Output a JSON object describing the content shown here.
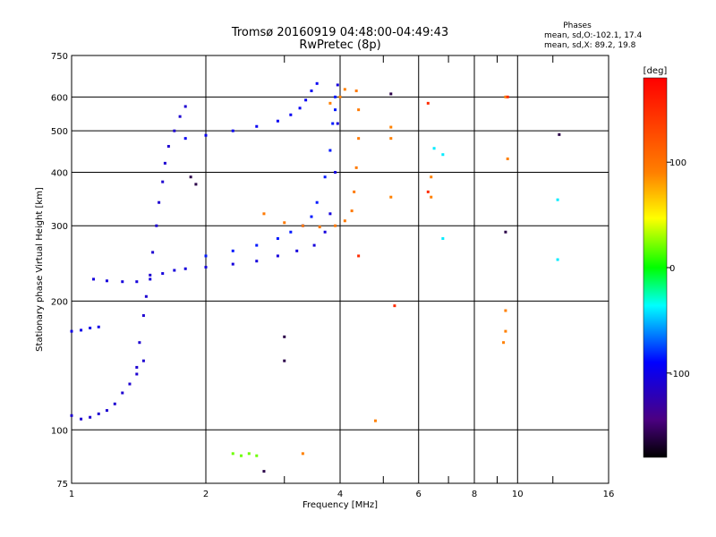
{
  "chart_data": {
    "type": "scatter",
    "title": "Tromsø 20160919 04:48:00-04:49:43",
    "subtitle": "RwPretec (8p)",
    "xlabel": "Frequency [MHz]",
    "ylabel": "Stationary phase Virtual Height [km]",
    "x_scale": "log",
    "y_scale": "log",
    "xlim": [
      1,
      16
    ],
    "ylim": [
      75,
      750
    ],
    "x_ticks": [
      1,
      2,
      4,
      6,
      8,
      10,
      16
    ],
    "x_minor_ticks": [
      3,
      5,
      7,
      9,
      12
    ],
    "y_ticks": [
      75,
      100,
      200,
      300,
      400,
      500,
      600,
      750
    ],
    "grid": true,
    "phases_legend": {
      "heading": "Phases",
      "line_o": "mean, sd,O:-102.1, 17.4",
      "line_x": "mean, sd,X:  89.2, 19.8"
    },
    "colorbar": {
      "label": "[deg]",
      "ticks": [
        100,
        0,
        -100
      ],
      "range": [
        -180,
        180
      ],
      "colormap": "rainbow"
    },
    "traces": [
      {
        "phase_deg": -100,
        "points": [
          [
            1.0,
            170
          ],
          [
            1.05,
            171
          ],
          [
            1.1,
            173
          ],
          [
            1.15,
            174
          ]
        ]
      },
      {
        "phase_deg": -110,
        "points": [
          [
            1.0,
            108
          ],
          [
            1.05,
            106
          ],
          [
            1.1,
            107
          ],
          [
            1.15,
            109
          ],
          [
            1.2,
            111
          ],
          [
            1.25,
            115
          ],
          [
            1.3,
            122
          ],
          [
            1.35,
            128
          ],
          [
            1.4,
            135
          ],
          [
            1.45,
            145
          ]
        ]
      },
      {
        "phase_deg": -105,
        "points": [
          [
            1.12,
            225
          ],
          [
            1.2,
            223
          ],
          [
            1.3,
            222
          ],
          [
            1.4,
            222
          ],
          [
            1.5,
            225
          ],
          [
            1.6,
            232
          ],
          [
            1.7,
            236
          ],
          [
            1.8,
            238
          ],
          [
            2.0,
            240
          ],
          [
            2.3,
            244
          ],
          [
            2.6,
            248
          ],
          [
            2.9,
            255
          ],
          [
            3.2,
            262
          ],
          [
            3.5,
            270
          ],
          [
            3.7,
            290
          ],
          [
            3.8,
            320
          ],
          [
            3.9,
            400
          ],
          [
            3.95,
            520
          ],
          [
            3.95,
            640
          ]
        ]
      },
      {
        "phase_deg": -95,
        "points": [
          [
            1.8,
            480
          ],
          [
            2.0,
            488
          ],
          [
            2.3,
            500
          ],
          [
            2.6,
            512
          ],
          [
            2.9,
            527
          ],
          [
            3.1,
            545
          ],
          [
            3.25,
            565
          ],
          [
            3.35,
            590
          ],
          [
            3.45,
            620
          ],
          [
            3.55,
            645
          ]
        ]
      },
      {
        "phase_deg": -85,
        "points": [
          [
            2.0,
            255
          ],
          [
            2.3,
            262
          ],
          [
            2.6,
            270
          ],
          [
            2.9,
            280
          ],
          [
            3.1,
            290
          ],
          [
            3.3,
            300
          ],
          [
            3.45,
            315
          ],
          [
            3.55,
            340
          ],
          [
            3.7,
            390
          ],
          [
            3.8,
            450
          ],
          [
            3.85,
            520
          ],
          [
            3.9,
            560
          ],
          [
            3.9,
            600
          ]
        ]
      },
      {
        "phase_deg": -110,
        "points": [
          [
            1.4,
            140
          ],
          [
            1.42,
            160
          ],
          [
            1.45,
            185
          ],
          [
            1.47,
            205
          ],
          [
            1.5,
            230
          ],
          [
            1.52,
            260
          ],
          [
            1.55,
            300
          ],
          [
            1.57,
            340
          ],
          [
            1.6,
            380
          ],
          [
            1.62,
            420
          ],
          [
            1.65,
            460
          ],
          [
            1.7,
            500
          ],
          [
            1.75,
            540
          ],
          [
            1.8,
            570
          ]
        ]
      },
      {
        "phase_deg": 95,
        "points": [
          [
            2.7,
            320
          ],
          [
            3.0,
            305
          ],
          [
            3.3,
            300
          ],
          [
            3.6,
            298
          ],
          [
            3.9,
            300
          ],
          [
            4.1,
            308
          ],
          [
            4.25,
            325
          ],
          [
            4.3,
            360
          ],
          [
            4.35,
            410
          ],
          [
            4.4,
            480
          ],
          [
            4.4,
            560
          ],
          [
            4.35,
            620
          ]
        ]
      },
      {
        "phase_deg": 90,
        "points": [
          [
            3.8,
            580
          ],
          [
            4.0,
            600
          ],
          [
            4.1,
            625
          ]
        ]
      },
      {
        "phase_deg": 20,
        "points": [
          [
            2.3,
            88
          ],
          [
            2.4,
            87
          ],
          [
            2.5,
            88
          ],
          [
            2.6,
            87
          ]
        ]
      },
      {
        "phase_deg": 90,
        "points": [
          [
            5.2,
            510
          ],
          [
            5.2,
            480
          ],
          [
            5.2,
            350
          ],
          [
            6.4,
            390
          ],
          [
            6.4,
            350
          ],
          [
            9.4,
            600
          ],
          [
            9.5,
            430
          ],
          [
            9.4,
            190
          ],
          [
            9.4,
            170
          ],
          [
            9.3,
            160
          ],
          [
            4.8,
            105
          ],
          [
            3.3,
            88
          ]
        ]
      },
      {
        "phase_deg": 150,
        "points": [
          [
            4.4,
            255
          ],
          [
            5.3,
            195
          ],
          [
            6.3,
            580
          ],
          [
            9.5,
            600
          ],
          [
            6.3,
            360
          ]
        ]
      },
      {
        "phase_deg": -40,
        "points": [
          [
            6.8,
            440
          ],
          [
            6.8,
            280
          ],
          [
            12.3,
            345
          ],
          [
            12.3,
            250
          ],
          [
            6.5,
            455
          ]
        ]
      },
      {
        "phase_deg": -160,
        "points": [
          [
            12.4,
            490
          ],
          [
            9.4,
            290
          ],
          [
            2.7,
            80
          ],
          [
            3.0,
            145
          ],
          [
            3.0,
            165
          ],
          [
            5.2,
            610
          ],
          [
            1.85,
            390
          ],
          [
            1.9,
            375
          ]
        ]
      }
    ]
  }
}
